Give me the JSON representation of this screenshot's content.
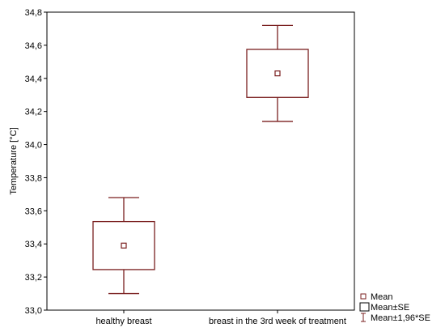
{
  "chart_data": {
    "type": "box",
    "title": "",
    "xlabel": "",
    "ylabel": "Temperature [°C]",
    "ylim": [
      33.0,
      34.8
    ],
    "yticks": [
      "33,0",
      "33,2",
      "33,4",
      "33,6",
      "33,8",
      "34,0",
      "34,2",
      "34,4",
      "34,6",
      "34,8"
    ],
    "categories": [
      "healthy breast",
      "breast in the 3rd week of treatment"
    ],
    "series": [
      {
        "category": "healthy breast",
        "mean": 33.39,
        "se_low": 33.245,
        "se_high": 33.535,
        "ci_low": 33.1,
        "ci_high": 33.68
      },
      {
        "category": "breast in the 3rd week of treatment",
        "mean": 34.43,
        "se_low": 34.285,
        "se_high": 34.575,
        "ci_low": 34.14,
        "ci_high": 34.72
      }
    ],
    "grid": false,
    "legend_position": "bottom-right",
    "legend": [
      "Mean",
      "Mean±SE",
      "Mean±1,96*SE"
    ],
    "color": "#7a1f1f"
  }
}
